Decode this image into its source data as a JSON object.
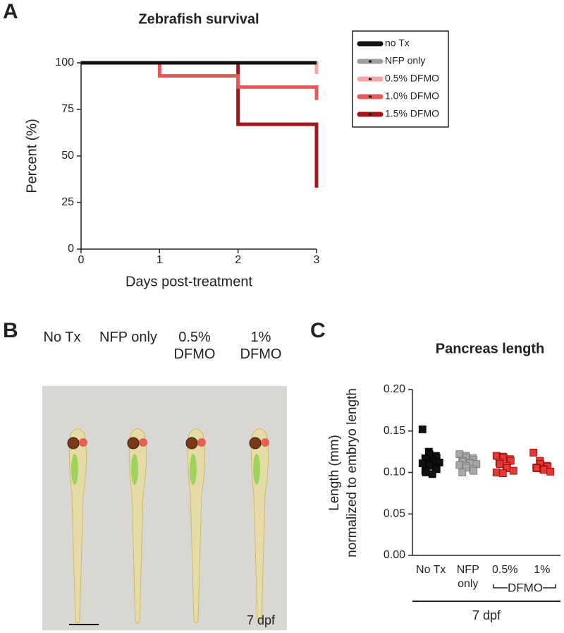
{
  "panel_labels": [
    "A",
    "B",
    "C"
  ],
  "chart_data": [
    {
      "type": "step",
      "title": "Zebrafish survival",
      "xlabel": "Days post-treatment",
      "ylabel": "Percent (%)",
      "x": [
        0,
        1,
        2,
        3
      ],
      "xlim": [
        0,
        3
      ],
      "xticks": [
        0,
        1,
        2,
        3
      ],
      "ylim": [
        0,
        100
      ],
      "yticks": [
        0,
        25,
        50,
        75,
        100
      ],
      "legend": "upper right",
      "series": [
        {
          "name": "no Tx",
          "color": "#111111",
          "values": [
            100,
            100,
            100,
            100
          ]
        },
        {
          "name": "NFP only",
          "color": "#9e9e9e",
          "values": [
            100,
            100,
            100,
            100
          ]
        },
        {
          "name": "0.5% DFMO",
          "color": "#f4a6a6",
          "values": [
            100,
            100,
            100,
            94
          ]
        },
        {
          "name": "1.0% DFMO",
          "color": "#e8585a",
          "values": [
            100,
            93,
            87,
            80
          ]
        },
        {
          "name": "1.5% DFMO",
          "color": "#a3161c",
          "values": [
            100,
            100,
            67,
            33
          ]
        }
      ]
    },
    {
      "type": "strip",
      "title": "Pancreas length",
      "ylabel_lines": [
        "Length (mm)",
        "normalized to embryo length"
      ],
      "categories": [
        "No Tx",
        "NFP only",
        "0.5%",
        "1%"
      ],
      "bracket_label": "DFMO",
      "group_label": "7 dpf",
      "colors": [
        "#111111",
        "#a8a8a8",
        "#e53935",
        "#e53935"
      ],
      "ylim": [
        0,
        0.2
      ],
      "yticks": [
        {
          "value": 0,
          "label": "0.00"
        },
        {
          "value": 0.05,
          "label": "0.05"
        },
        {
          "value": 0.1,
          "label": "0.10"
        },
        {
          "value": 0.15,
          "label": "0.15"
        },
        {
          "value": 0.2,
          "label": "0.20"
        }
      ],
      "values": [
        [
          0.152,
          0.125,
          0.122,
          0.12,
          0.118,
          0.117,
          0.116,
          0.115,
          0.113,
          0.112,
          0.111,
          0.11,
          0.108,
          0.106,
          0.104,
          0.102,
          0.1,
          0.098
        ],
        [
          0.122,
          0.12,
          0.118,
          0.117,
          0.115,
          0.114,
          0.113,
          0.112,
          0.111,
          0.11,
          0.109,
          0.108,
          0.106,
          0.104,
          0.102,
          0.1
        ],
        [
          0.12,
          0.119,
          0.118,
          0.116,
          0.114,
          0.112,
          0.11,
          0.108,
          0.105,
          0.102,
          0.1,
          0.099
        ],
        [
          0.124,
          0.114,
          0.11,
          0.108,
          0.107,
          0.106,
          0.105,
          0.104,
          0.103,
          0.101
        ]
      ]
    }
  ],
  "photo": {
    "labels": [
      "No Tx",
      "NFP only",
      "0.5% DFMO",
      "1% DFMO"
    ],
    "stage": "7 dpf"
  }
}
